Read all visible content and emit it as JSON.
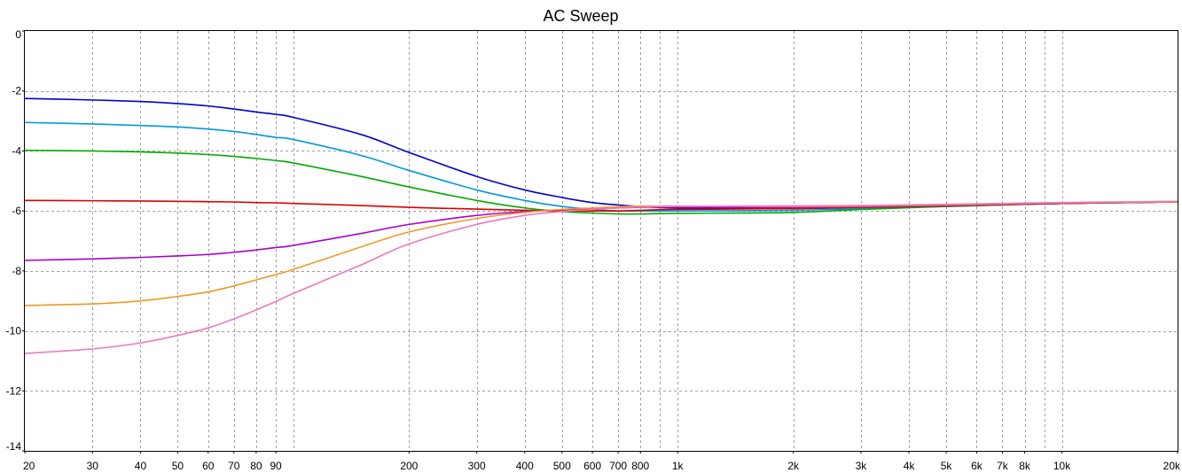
{
  "chart_data": {
    "type": "line",
    "title": "AC Sweep",
    "xlabel": "",
    "ylabel": "",
    "x_scale": "log",
    "xlim": [
      20,
      20000
    ],
    "ylim": [
      -14,
      0
    ],
    "grid": true,
    "legend": "none",
    "x_ticks": [
      20,
      30,
      40,
      50,
      60,
      70,
      80,
      90,
      200,
      300,
      400,
      500,
      600,
      700,
      800,
      1000,
      2000,
      3000,
      4000,
      5000,
      6000,
      7000,
      8000,
      10000,
      20000
    ],
    "x_tick_labels": [
      "20",
      "30",
      "40",
      "50",
      "60",
      "70",
      "80",
      "90",
      "200",
      "300",
      "400",
      "500",
      "600",
      "700",
      "800",
      "1k",
      "2k",
      "3k",
      "4k",
      "5k",
      "6k",
      "7k",
      "8k",
      "10k",
      "20k"
    ],
    "x_grid_extra": [
      100,
      900,
      9000
    ],
    "y_ticks": [
      0,
      -2,
      -4,
      -6,
      -8,
      -10,
      -12,
      -14
    ],
    "y_tick_labels": [
      "0",
      "-2",
      "-4",
      "-6",
      "-8",
      "-10",
      "-12",
      "-14"
    ],
    "x": [
      20,
      30,
      40,
      50,
      60,
      70,
      80,
      90,
      100,
      150,
      200,
      300,
      400,
      500,
      600,
      700,
      800,
      1000,
      2000,
      3000,
      5000,
      10000,
      20000
    ],
    "series": [
      {
        "color": "#0000cc",
        "values": [
          -2.25,
          -2.3,
          -2.35,
          -2.42,
          -2.5,
          -2.6,
          -2.7,
          -2.78,
          -2.88,
          -3.45,
          -4.05,
          -4.85,
          -5.3,
          -5.55,
          -5.72,
          -5.8,
          -5.85,
          -5.9,
          -5.92,
          -5.88,
          -5.82,
          -5.75,
          -5.7
        ]
      },
      {
        "color": "#0099dd",
        "values": [
          -3.05,
          -3.1,
          -3.15,
          -3.2,
          -3.27,
          -3.35,
          -3.45,
          -3.55,
          -3.62,
          -4.15,
          -4.65,
          -5.3,
          -5.65,
          -5.85,
          -5.95,
          -6.0,
          -6.0,
          -6.0,
          -5.98,
          -5.92,
          -5.85,
          -5.75,
          -5.7
        ]
      },
      {
        "color": "#00aa00",
        "values": [
          -3.98,
          -4.0,
          -4.03,
          -4.07,
          -4.12,
          -4.18,
          -4.25,
          -4.32,
          -4.4,
          -4.85,
          -5.2,
          -5.65,
          -5.9,
          -6.02,
          -6.07,
          -6.1,
          -6.1,
          -6.08,
          -6.05,
          -5.95,
          -5.85,
          -5.75,
          -5.7
        ]
      },
      {
        "color": "#dd0000",
        "values": [
          -5.65,
          -5.66,
          -5.67,
          -5.68,
          -5.69,
          -5.7,
          -5.72,
          -5.73,
          -5.75,
          -5.82,
          -5.88,
          -5.94,
          -5.98,
          -6.0,
          -6.0,
          -6.0,
          -5.98,
          -5.95,
          -5.92,
          -5.88,
          -5.83,
          -5.75,
          -5.7
        ]
      },
      {
        "color": "#aa00cc",
        "values": [
          -7.65,
          -7.6,
          -7.55,
          -7.5,
          -7.45,
          -7.38,
          -7.3,
          -7.22,
          -7.15,
          -6.75,
          -6.45,
          -6.15,
          -6.02,
          -5.96,
          -5.93,
          -5.9,
          -5.88,
          -5.87,
          -5.88,
          -5.86,
          -5.82,
          -5.74,
          -5.7
        ]
      },
      {
        "color": "#ee9922",
        "values": [
          -9.15,
          -9.1,
          -9.0,
          -8.85,
          -8.7,
          -8.5,
          -8.3,
          -8.12,
          -7.95,
          -7.2,
          -6.7,
          -6.25,
          -6.05,
          -5.95,
          -5.9,
          -5.86,
          -5.84,
          -5.84,
          -5.85,
          -5.84,
          -5.8,
          -5.73,
          -5.7
        ]
      },
      {
        "color": "#ee77bb",
        "values": [
          -10.75,
          -10.6,
          -10.4,
          -10.15,
          -9.9,
          -9.6,
          -9.3,
          -9.02,
          -8.75,
          -7.8,
          -7.1,
          -6.45,
          -6.15,
          -6.02,
          -5.95,
          -5.9,
          -5.87,
          -5.85,
          -5.83,
          -5.82,
          -5.78,
          -5.72,
          -5.68
        ]
      }
    ]
  }
}
